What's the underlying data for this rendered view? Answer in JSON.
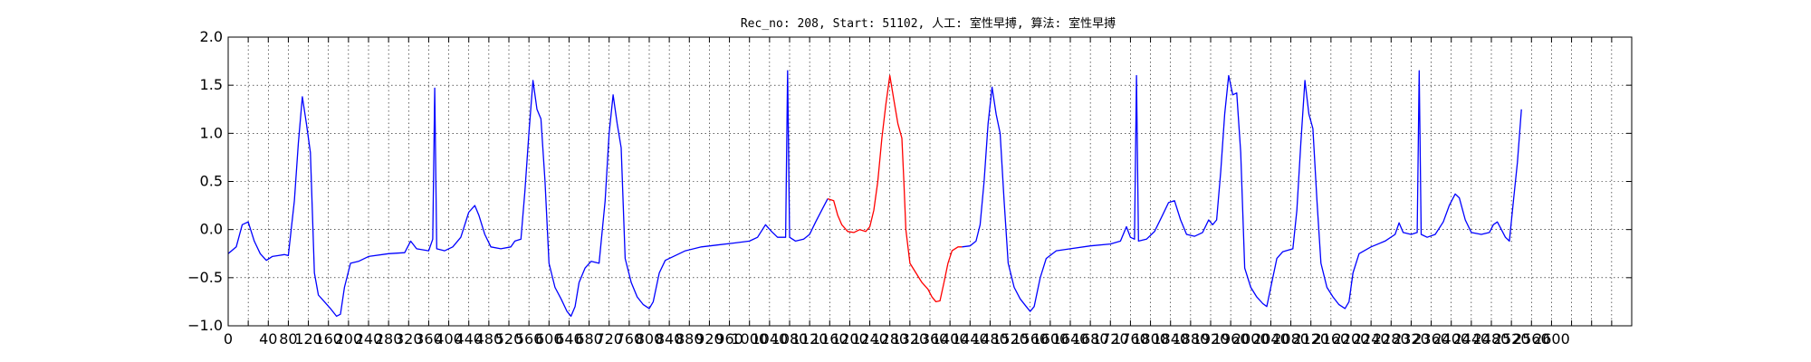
{
  "chart_data": {
    "type": "line",
    "title": "Rec_no: 208, Start: 51102, 人工: 室性早搏, 算法: 室性早搏",
    "xlabel": "",
    "ylabel": "",
    "xlim": [
      0,
      1400
    ],
    "ylim": [
      -1.0,
      2.0
    ],
    "grid": true,
    "y_ticks": [
      "2.0",
      "1.5",
      "1.0",
      "0.5",
      "0.0",
      "−0.5",
      "−1.0"
    ],
    "y_tick_values": [
      2.0,
      1.5,
      1.0,
      0.5,
      0.0,
      -0.5,
      -1.0
    ],
    "x_tick_values": [
      0,
      20,
      40,
      60,
      80,
      100,
      120,
      140,
      160,
      180,
      200,
      220,
      240,
      260,
      280,
      300,
      320,
      340,
      360,
      380,
      400,
      420,
      440,
      460,
      480,
      500,
      520,
      540,
      560,
      580,
      600,
      620,
      640,
      660,
      680,
      700,
      720,
      740,
      760,
      780,
      800,
      820,
      840,
      860,
      880,
      900,
      920,
      940,
      960,
      980,
      1000,
      1020,
      1040,
      1060,
      1080,
      1100,
      1120,
      1140,
      1160,
      1180,
      1200,
      1220,
      1240,
      1260,
      1280,
      1300,
      1320,
      1340,
      1360,
      1380,
      1400
    ],
    "x_tick_labels": [
      "0",
      "",
      "40",
      "80",
      "120",
      "160",
      "200",
      "240",
      "280",
      "320",
      "360",
      "400",
      "440",
      "480",
      "520",
      "560",
      "600",
      "640",
      "680",
      "720",
      "760",
      "800",
      "840",
      "880",
      "920",
      "960",
      "1000",
      "1040",
      "1080",
      "1120",
      "1160",
      "1200",
      "1240",
      "1280",
      "1320",
      "1360",
      "1400",
      "1440",
      "1480",
      "1520",
      "1560",
      "1600",
      "1640",
      "1680",
      "1720",
      "1760",
      "1800",
      "1840",
      "1880",
      "1920",
      "1960",
      "2000",
      "2040",
      "2080",
      "2120",
      "2160",
      "2200",
      "2240",
      "2280",
      "2320",
      "2360",
      "2400",
      "2440",
      "2480",
      "2520",
      "2560",
      "2600",
      "",
      "",
      "",
      ""
    ],
    "series": [
      {
        "color": "#0000ff",
        "points": [
          [
            0,
            -0.25
          ],
          [
            8,
            -0.18
          ],
          [
            14,
            0.05
          ],
          [
            20,
            0.08
          ],
          [
            26,
            -0.12
          ],
          [
            32,
            -0.25
          ],
          [
            38,
            -0.32
          ],
          [
            44,
            -0.28
          ],
          [
            50,
            -0.27
          ],
          [
            56,
            -0.26
          ],
          [
            60,
            -0.27
          ],
          [
            66,
            0.3
          ],
          [
            70,
            0.9
          ],
          [
            74,
            1.38
          ],
          [
            78,
            1.1
          ],
          [
            82,
            0.8
          ],
          [
            86,
            -0.45
          ],
          [
            90,
            -0.68
          ],
          [
            96,
            -0.75
          ],
          [
            102,
            -0.82
          ],
          [
            108,
            -0.9
          ],
          [
            112,
            -0.88
          ],
          [
            116,
            -0.6
          ],
          [
            122,
            -0.35
          ],
          [
            130,
            -0.33
          ],
          [
            140,
            -0.28
          ],
          [
            160,
            -0.25
          ],
          [
            176,
            -0.24
          ],
          [
            182,
            -0.12
          ],
          [
            188,
            -0.2
          ],
          [
            200,
            -0.22
          ],
          [
            204,
            -0.1
          ],
          [
            206,
            1.47
          ],
          [
            208,
            -0.2
          ],
          [
            216,
            -0.22
          ],
          [
            224,
            -0.18
          ],
          [
            232,
            -0.08
          ],
          [
            240,
            0.18
          ],
          [
            246,
            0.25
          ],
          [
            250,
            0.15
          ],
          [
            256,
            -0.05
          ],
          [
            262,
            -0.18
          ],
          [
            272,
            -0.2
          ],
          [
            282,
            -0.18
          ],
          [
            286,
            -0.12
          ],
          [
            292,
            -0.1
          ],
          [
            296,
            0.4
          ],
          [
            300,
            1.0
          ],
          [
            304,
            1.55
          ],
          [
            308,
            1.25
          ],
          [
            312,
            1.15
          ],
          [
            316,
            0.5
          ],
          [
            320,
            -0.35
          ],
          [
            326,
            -0.6
          ],
          [
            332,
            -0.72
          ],
          [
            338,
            -0.85
          ],
          [
            342,
            -0.9
          ],
          [
            346,
            -0.8
          ],
          [
            350,
            -0.55
          ],
          [
            356,
            -0.4
          ],
          [
            362,
            -0.33
          ],
          [
            370,
            -0.35
          ],
          [
            376,
            0.3
          ],
          [
            380,
            1.0
          ],
          [
            384,
            1.4
          ],
          [
            388,
            1.1
          ],
          [
            392,
            0.85
          ],
          [
            396,
            -0.3
          ],
          [
            402,
            -0.55
          ],
          [
            408,
            -0.7
          ],
          [
            414,
            -0.78
          ],
          [
            420,
            -0.82
          ],
          [
            424,
            -0.75
          ],
          [
            430,
            -0.45
          ],
          [
            436,
            -0.32
          ],
          [
            444,
            -0.28
          ],
          [
            456,
            -0.22
          ],
          [
            472,
            -0.18
          ],
          [
            488,
            -0.16
          ],
          [
            504,
            -0.14
          ],
          [
            520,
            -0.12
          ],
          [
            528,
            -0.08
          ],
          [
            536,
            0.05
          ],
          [
            542,
            -0.02
          ],
          [
            548,
            -0.08
          ],
          [
            556,
            -0.08
          ],
          [
            558,
            1.65
          ],
          [
            560,
            -0.08
          ],
          [
            566,
            -0.12
          ],
          [
            574,
            -0.1
          ],
          [
            580,
            -0.05
          ],
          [
            586,
            0.08
          ],
          [
            592,
            0.2
          ],
          [
            598,
            0.32
          ]
        ]
      },
      {
        "color": "#ff0000",
        "points": [
          [
            598,
            0.32
          ],
          [
            604,
            0.3
          ],
          [
            608,
            0.15
          ],
          [
            612,
            0.05
          ],
          [
            618,
            -0.02
          ],
          [
            624,
            -0.03
          ],
          [
            630,
            0.0
          ],
          [
            636,
            -0.02
          ],
          [
            640,
            0.03
          ],
          [
            644,
            0.2
          ],
          [
            648,
            0.5
          ],
          [
            652,
            0.95
          ],
          [
            656,
            1.3
          ],
          [
            660,
            1.6
          ],
          [
            664,
            1.35
          ],
          [
            668,
            1.1
          ],
          [
            672,
            0.95
          ],
          [
            674,
            0.5
          ],
          [
            676,
            0.0
          ],
          [
            680,
            -0.35
          ],
          [
            686,
            -0.45
          ],
          [
            692,
            -0.55
          ],
          [
            698,
            -0.62
          ],
          [
            702,
            -0.7
          ],
          [
            706,
            -0.75
          ],
          [
            710,
            -0.74
          ],
          [
            714,
            -0.55
          ],
          [
            718,
            -0.35
          ],
          [
            722,
            -0.22
          ],
          [
            728,
            -0.18
          ],
          [
            732,
            -0.18
          ]
        ]
      },
      {
        "color": "#0000ff",
        "points": [
          [
            732,
            -0.18
          ],
          [
            740,
            -0.17
          ],
          [
            746,
            -0.12
          ],
          [
            750,
            0.05
          ],
          [
            754,
            0.5
          ],
          [
            758,
            1.1
          ],
          [
            762,
            1.48
          ],
          [
            766,
            1.2
          ],
          [
            770,
            1.0
          ],
          [
            774,
            0.3
          ],
          [
            778,
            -0.35
          ],
          [
            784,
            -0.6
          ],
          [
            790,
            -0.72
          ],
          [
            796,
            -0.8
          ],
          [
            800,
            -0.85
          ],
          [
            804,
            -0.8
          ],
          [
            810,
            -0.5
          ],
          [
            816,
            -0.3
          ],
          [
            826,
            -0.22
          ],
          [
            840,
            -0.2
          ],
          [
            860,
            -0.17
          ],
          [
            880,
            -0.15
          ],
          [
            890,
            -0.12
          ],
          [
            896,
            0.03
          ],
          [
            900,
            -0.08
          ],
          [
            904,
            -0.1
          ],
          [
            906,
            1.6
          ],
          [
            908,
            -0.12
          ],
          [
            916,
            -0.1
          ],
          [
            924,
            -0.02
          ],
          [
            932,
            0.15
          ],
          [
            938,
            0.28
          ],
          [
            944,
            0.3
          ],
          [
            950,
            0.1
          ],
          [
            956,
            -0.05
          ],
          [
            964,
            -0.07
          ],
          [
            972,
            -0.03
          ],
          [
            978,
            0.1
          ],
          [
            982,
            0.05
          ],
          [
            986,
            0.1
          ],
          [
            990,
            0.6
          ],
          [
            994,
            1.2
          ],
          [
            998,
            1.6
          ],
          [
            1002,
            1.4
          ],
          [
            1006,
            1.42
          ],
          [
            1010,
            0.8
          ],
          [
            1014,
            -0.4
          ],
          [
            1020,
            -0.6
          ],
          [
            1026,
            -0.7
          ],
          [
            1032,
            -0.77
          ],
          [
            1036,
            -0.8
          ],
          [
            1040,
            -0.6
          ],
          [
            1046,
            -0.3
          ],
          [
            1052,
            -0.23
          ],
          [
            1062,
            -0.2
          ],
          [
            1066,
            0.2
          ],
          [
            1070,
            0.9
          ],
          [
            1074,
            1.55
          ],
          [
            1078,
            1.2
          ],
          [
            1082,
            1.05
          ],
          [
            1086,
            0.3
          ],
          [
            1090,
            -0.35
          ],
          [
            1096,
            -0.6
          ],
          [
            1102,
            -0.7
          ],
          [
            1108,
            -0.78
          ],
          [
            1114,
            -0.82
          ],
          [
            1118,
            -0.75
          ],
          [
            1122,
            -0.45
          ],
          [
            1128,
            -0.25
          ],
          [
            1140,
            -0.18
          ],
          [
            1154,
            -0.12
          ],
          [
            1164,
            -0.05
          ],
          [
            1168,
            0.07
          ],
          [
            1172,
            -0.03
          ],
          [
            1180,
            -0.05
          ],
          [
            1186,
            -0.03
          ],
          [
            1188,
            1.65
          ],
          [
            1190,
            -0.05
          ],
          [
            1196,
            -0.08
          ],
          [
            1204,
            -0.05
          ],
          [
            1212,
            0.08
          ],
          [
            1218,
            0.25
          ],
          [
            1224,
            0.37
          ],
          [
            1228,
            0.33
          ],
          [
            1234,
            0.1
          ],
          [
            1240,
            -0.03
          ],
          [
            1250,
            -0.05
          ],
          [
            1258,
            -0.03
          ],
          [
            1262,
            0.05
          ],
          [
            1266,
            0.08
          ],
          [
            1270,
            0.0
          ],
          [
            1274,
            -0.08
          ],
          [
            1278,
            -0.12
          ],
          [
            1282,
            0.3
          ],
          [
            1286,
            0.7
          ],
          [
            1290,
            1.25
          ]
        ]
      }
    ]
  }
}
